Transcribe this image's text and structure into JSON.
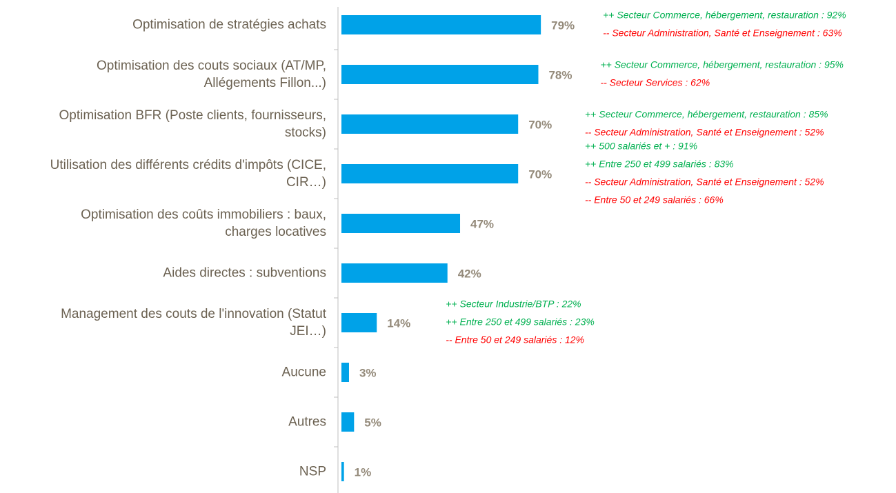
{
  "chart_data": {
    "type": "hbar",
    "categories": [
      "Optimisation de stratégies achats",
      "Optimisation des couts sociaux (AT/MP,\nAllégements Fillon...)",
      "Optimisation BFR (Poste clients, fournisseurs,\nstocks)",
      "Utilisation des différents crédits d'impôts (CICE,\nCIR…)",
      "Optimisation des coûts immobiliers : baux,\ncharges locatives",
      "Aides directes : subventions",
      "Management des couts de l'innovation (Statut\nJEI…)",
      "Aucune",
      "Autres",
      "NSP"
    ],
    "values": [
      79,
      78,
      70,
      70,
      47,
      42,
      14,
      3,
      5,
      1
    ],
    "value_labels": [
      "79%",
      "78%",
      "70%",
      "70%",
      "47%",
      "42%",
      "14%",
      "3%",
      "5%",
      "1%"
    ],
    "color": "#00a2e8",
    "xlim": [
      0,
      100
    ],
    "annotations": [
      [
        {
          "text": "++ Secteur Commerce, hébergement, restauration : 92%",
          "color": "#00b050"
        },
        {
          "text": "-- Secteur Administration, Santé et Enseignement : 63%",
          "color": "#ff0000"
        }
      ],
      [
        {
          "text": "++ Secteur Commerce, hébergement, restauration : 95%",
          "color": "#00b050"
        },
        {
          "text": "-- Secteur Services : 62%",
          "color": "#ff0000"
        }
      ],
      [
        {
          "text": "++ Secteur Commerce, hébergement, restauration : 85%",
          "color": "#00b050"
        },
        {
          "text": "-- Secteur Administration, Santé et Enseignement : 52%",
          "color": "#ff0000"
        }
      ],
      [
        {
          "text": "++ 500 salariés et + : 91%",
          "color": "#00b050"
        },
        {
          "text": "++ Entre 250 et 499 salariés  : 83%",
          "color": "#00b050"
        },
        {
          "text": "-- Secteur Administration, Santé et Enseignement : 52%",
          "color": "#ff0000"
        },
        {
          "text": "-- Entre 50 et 249 salariés : 66%",
          "color": "#ff0000"
        }
      ],
      [],
      [],
      [
        {
          "text": "++ Secteur Industrie/BTP : 22%",
          "color": "#00b050"
        },
        {
          "text": "++ Entre 250 et 499 salariés : 23%",
          "color": "#00b050"
        },
        {
          "text": "-- Entre 50 et 249 salariés : 12%",
          "color": "#ff0000"
        }
      ],
      [],
      [],
      []
    ]
  }
}
